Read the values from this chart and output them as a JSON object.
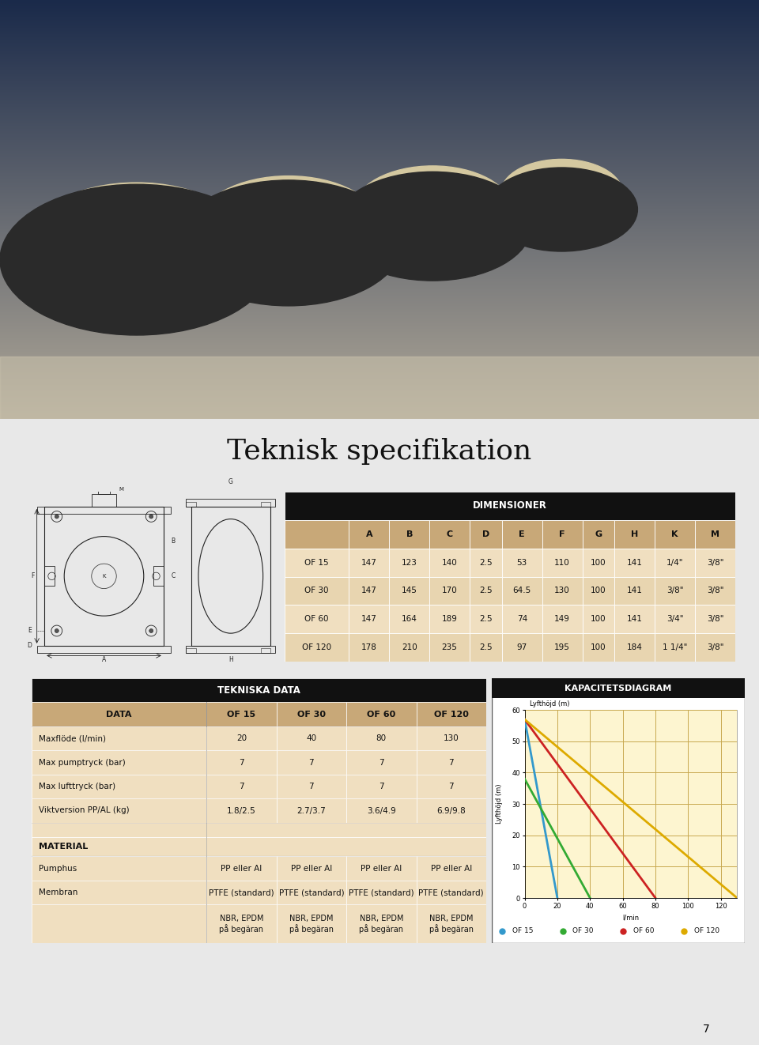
{
  "page_bg": "#e8e8e8",
  "title": "Teknisk specifikation",
  "title_fontsize": 26,
  "dim_table_header": "DIMENSIONER",
  "dim_columns": [
    "",
    "A",
    "B",
    "C",
    "D",
    "E",
    "F",
    "G",
    "H",
    "K",
    "M"
  ],
  "dim_rows": [
    [
      "OF 15",
      "147",
      "123",
      "140",
      "2.5",
      "53",
      "110",
      "100",
      "141",
      "1/4\"",
      "3/8\""
    ],
    [
      "OF 30",
      "147",
      "145",
      "170",
      "2.5",
      "64.5",
      "130",
      "100",
      "141",
      "3/8\"",
      "3/8\""
    ],
    [
      "OF 60",
      "147",
      "164",
      "189",
      "2.5",
      "74",
      "149",
      "100",
      "141",
      "3/4\"",
      "3/8\""
    ],
    [
      "OF 120",
      "178",
      "210",
      "235",
      "2.5",
      "97",
      "195",
      "100",
      "184",
      "1 1/4\"",
      "3/8\""
    ]
  ],
  "dim_header_bg": "#111111",
  "dim_header_fg": "#ffffff",
  "dim_col_header_bg": "#c8a878",
  "dim_row_bg_odd": "#f0dfc0",
  "dim_row_bg_even": "#e8d5b0",
  "tech_table_header": "TEKNISKA DATA",
  "tech_columns": [
    "DATA",
    "OF 15",
    "OF 30",
    "OF 60",
    "OF 120"
  ],
  "tech_rows": [
    [
      "Maxflöde (l/min)",
      "20",
      "40",
      "80",
      "130"
    ],
    [
      "Max pumptryck (bar)",
      "7",
      "7",
      "7",
      "7"
    ],
    [
      "Max lufttryck (bar)",
      "7",
      "7",
      "7",
      "7"
    ],
    [
      "Viktversion PP/AL (kg)",
      "1.8/2.5",
      "2.7/3.7",
      "3.6/4.9",
      "6.9/9.8"
    ]
  ],
  "material_label": "MATERIAL",
  "material_rows": [
    [
      "Pumphus",
      "PP eller Al",
      "PP eller Al",
      "PP eller Al",
      "PP eller Al"
    ],
    [
      "Membran",
      "PTFE (standard)",
      "PTFE (standard)",
      "PTFE (standard)",
      "PTFE (standard)"
    ],
    [
      "",
      "NBR, EPDM\npå begäran",
      "NBR, EPDM\npå begäran",
      "NBR, EPDM\npå begäran",
      "NBR, EPDM\npå begäran"
    ]
  ],
  "kapacitet_header": "KAPACITETSDIAGRAM",
  "kapacitet_ylabel": "Lyfthöjd (m)",
  "kapacitet_xlabel": "l/min",
  "kapacitet_xlim": [
    0,
    130
  ],
  "kapacitet_ylim": [
    0,
    60
  ],
  "kapacitet_xticks": [
    0,
    20,
    40,
    60,
    80,
    100,
    120
  ],
  "kapacitet_yticks": [
    0,
    10,
    20,
    30,
    40,
    50,
    60
  ],
  "curves": [
    {
      "label": "OF 15",
      "color": "#3399cc",
      "x": [
        0,
        20
      ],
      "y": [
        57,
        0
      ]
    },
    {
      "label": "OF 30",
      "color": "#33aa33",
      "x": [
        0,
        40
      ],
      "y": [
        38,
        0
      ]
    },
    {
      "label": "OF 60",
      "color": "#cc2222",
      "x": [
        0,
        80
      ],
      "y": [
        57,
        0
      ]
    },
    {
      "label": "OF 120",
      "color": "#ddaa00",
      "x": [
        0,
        130
      ],
      "y": [
        57,
        0
      ]
    }
  ],
  "table_bg": "#f0dfc0",
  "header_dark_bg": "#111111",
  "header_dark_fg": "#ffffff",
  "chart_bg": "#fdf5d0",
  "chart_grid_color": "#c8a850",
  "page_number": "7",
  "photo_bg_top": "#1a2a4a",
  "photo_bg_bot": "#b0a898"
}
